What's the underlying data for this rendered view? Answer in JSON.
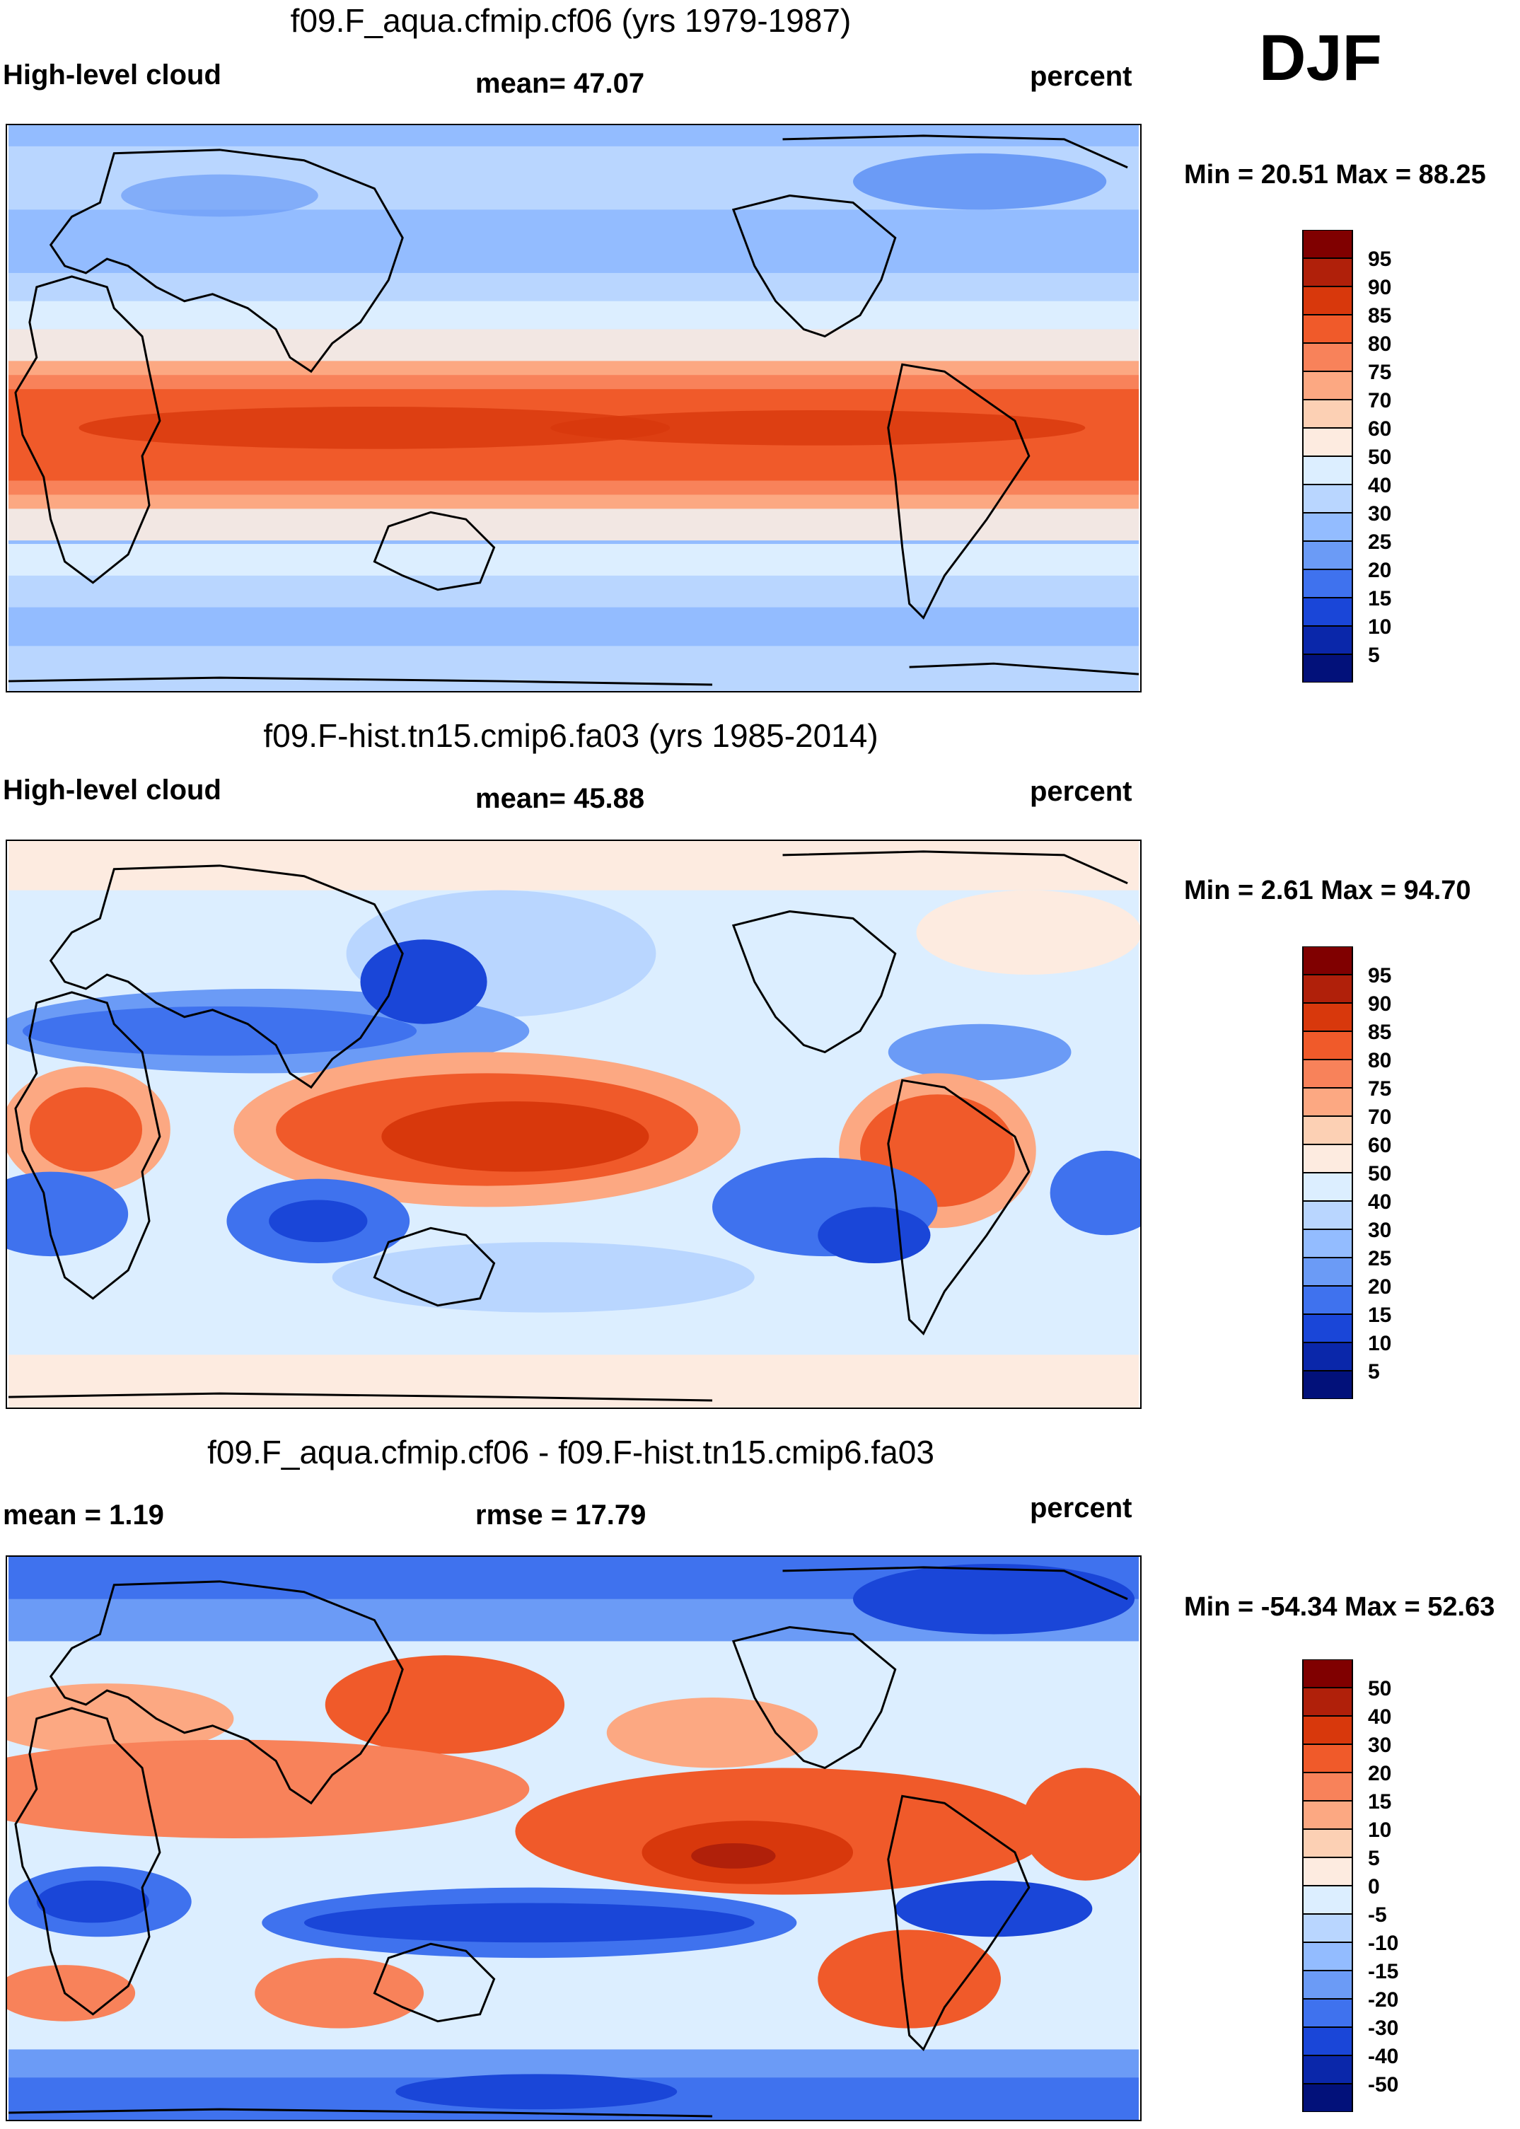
{
  "season": "DJF",
  "chart_data": [
    {
      "type": "heatmap",
      "title": "f09.F_aqua.cfmip.cf06 (yrs 1979-1987)",
      "left_label": "High-level cloud",
      "center_label": "mean=  47.07",
      "right_label": "percent",
      "minmax": "Min =  20.51 Max =  88.25",
      "min": 20.51,
      "max": 88.25,
      "mean": 47.07,
      "colorbar": {
        "levels": [
          "95",
          "90",
          "85",
          "80",
          "75",
          "70",
          "60",
          "50",
          "40",
          "30",
          "25",
          "20",
          "15",
          "10",
          "5"
        ],
        "colors": [
          "#800000",
          "#b0200a",
          "#d8380c",
          "#f05a2a",
          "#f8825a",
          "#fca882",
          "#fcd0b4",
          "#fdebe0",
          "#dceeff",
          "#b9d6ff",
          "#93bcff",
          "#6b9bf6",
          "#3f72ee",
          "#1a46d8",
          "#0a27aa",
          "#02117a"
        ]
      }
    },
    {
      "type": "heatmap",
      "title": "f09.F-hist.tn15.cmip6.fa03 (yrs 1985-2014)",
      "left_label": "High-level cloud",
      "center_label": "mean=  45.88",
      "right_label": "percent",
      "minmax": "Min =   2.61 Max =  94.70",
      "min": 2.61,
      "max": 94.7,
      "mean": 45.88,
      "colorbar": {
        "levels": [
          "95",
          "90",
          "85",
          "80",
          "75",
          "70",
          "60",
          "50",
          "40",
          "30",
          "25",
          "20",
          "15",
          "10",
          "5"
        ],
        "colors": [
          "#800000",
          "#b0200a",
          "#d8380c",
          "#f05a2a",
          "#f8825a",
          "#fca882",
          "#fcd0b4",
          "#fdebe0",
          "#dceeff",
          "#b9d6ff",
          "#93bcff",
          "#6b9bf6",
          "#3f72ee",
          "#1a46d8",
          "#0a27aa",
          "#02117a"
        ]
      }
    },
    {
      "type": "heatmap",
      "title": "f09.F_aqua.cfmip.cf06 - f09.F-hist.tn15.cmip6.fa03",
      "left_label": "mean =   1.19",
      "center_label": "rmse =  17.79",
      "right_label": "percent",
      "minmax": "Min = -54.34 Max =  52.63",
      "min": -54.34,
      "max": 52.63,
      "mean": 1.19,
      "rmse": 17.79,
      "colorbar": {
        "levels": [
          "50",
          "40",
          "30",
          "20",
          "15",
          "10",
          "5",
          "0",
          "-5",
          "-10",
          "-15",
          "-20",
          "-30",
          "-40",
          "-50"
        ],
        "colors": [
          "#800000",
          "#b0200a",
          "#d8380c",
          "#f05a2a",
          "#f8825a",
          "#fca882",
          "#fcd0b4",
          "#fdebe0",
          "#dceeff",
          "#b9d6ff",
          "#93bcff",
          "#6b9bf6",
          "#3f72ee",
          "#1a46d8",
          "#0a27aa",
          "#02117a"
        ]
      }
    }
  ]
}
